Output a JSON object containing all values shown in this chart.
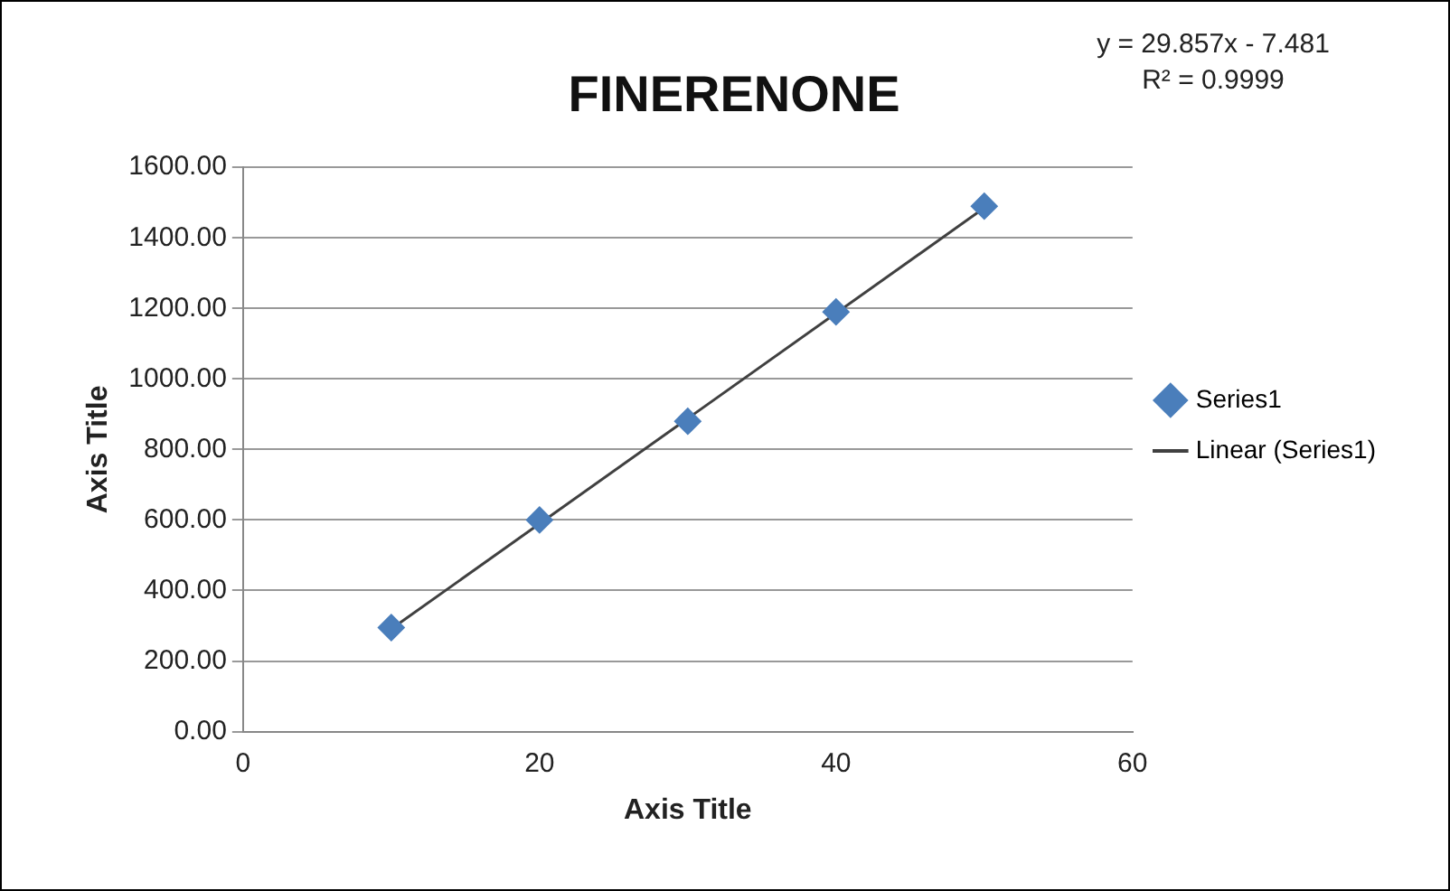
{
  "chart_data": {
    "type": "scatter",
    "title": "FINERENONE",
    "xlabel": "Axis Title",
    "ylabel": "Axis Title",
    "annotations": [
      "y = 29.857x - 7.481",
      "R² = 0.9999"
    ],
    "x": [
      10,
      20,
      30,
      40,
      50
    ],
    "series": [
      {
        "name": "Series1",
        "type": "scatter",
        "color": "#4a7ebb",
        "marker": "diamond",
        "values": [
          295,
          600,
          880,
          1190,
          1490
        ]
      },
      {
        "name": "Linear (Series1)",
        "type": "line",
        "color": "#404040",
        "marker": "none",
        "x": [
          10,
          50
        ],
        "values": [
          291,
          1485
        ]
      }
    ],
    "xlim": [
      0,
      60
    ],
    "xticks": [
      0,
      20,
      40,
      60
    ],
    "ylim": [
      0,
      1600
    ],
    "yticks": [
      {
        "value": 0,
        "label": "0.00"
      },
      {
        "value": 200,
        "label": "200.00"
      },
      {
        "value": 400,
        "label": "400.00"
      },
      {
        "value": 600,
        "label": "600.00"
      },
      {
        "value": 800,
        "label": "800.00"
      },
      {
        "value": 1000,
        "label": "1000.00"
      },
      {
        "value": 1200,
        "label": "1200.00"
      },
      {
        "value": 1400,
        "label": "1400.00"
      },
      {
        "value": 1600,
        "label": "1600.00"
      }
    ],
    "grid": "y",
    "legend": "right"
  }
}
